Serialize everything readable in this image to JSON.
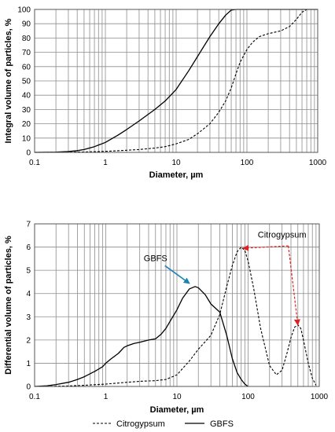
{
  "chart_data": [
    {
      "type": "line",
      "xscale": "log",
      "xlim": [
        0.1,
        1000
      ],
      "ylim": [
        0,
        100
      ],
      "xticks": [
        0.1,
        1,
        10,
        100,
        1000
      ],
      "xtick_labels": [
        "0.1",
        "1",
        "10",
        "100",
        "1000"
      ],
      "yticks": [
        0,
        10,
        20,
        30,
        40,
        50,
        60,
        70,
        80,
        90,
        100
      ],
      "ytick_labels": [
        "0",
        "10",
        "20",
        "30",
        "40",
        "50",
        "60",
        "70",
        "80",
        "90",
        "100"
      ],
      "xlabel": "Diameter, µm",
      "ylabel": "Integral volume of particles, %",
      "grid": true,
      "series": [
        {
          "name": "GBFS",
          "style": "solid",
          "color": "#000000",
          "x": [
            0.1,
            0.15,
            0.2,
            0.3,
            0.4,
            0.5,
            0.7,
            1,
            1.5,
            2,
            3,
            5,
            7,
            10,
            15,
            20,
            30,
            40,
            50,
            60,
            70,
            80,
            100,
            150,
            200,
            500,
            1000
          ],
          "y": [
            0,
            0.1,
            0.2,
            0.6,
            1.2,
            2,
            4,
            7,
            12,
            16,
            22,
            30,
            36,
            44,
            57,
            67,
            81,
            90,
            96,
            99.5,
            100,
            100,
            100,
            100,
            100,
            100,
            100
          ]
        },
        {
          "name": "Citrogypsum",
          "style": "dashed",
          "color": "#000000",
          "x": [
            0.1,
            0.2,
            0.5,
            1,
            2,
            3,
            5,
            7,
            10,
            15,
            20,
            30,
            40,
            50,
            60,
            70,
            80,
            100,
            120,
            150,
            200,
            300,
            400,
            500,
            600,
            700,
            1000
          ],
          "y": [
            0,
            0.1,
            0.3,
            0.7,
            1.5,
            2,
            3,
            4,
            6,
            9,
            13,
            20,
            28,
            36,
            45,
            55,
            63,
            72,
            77,
            81,
            83,
            85,
            88,
            93,
            98,
            100,
            100
          ]
        }
      ]
    },
    {
      "type": "line",
      "xscale": "log",
      "xlim": [
        0.1,
        1000
      ],
      "ylim": [
        0,
        7
      ],
      "xticks": [
        0.1,
        1,
        10,
        100,
        1000
      ],
      "xtick_labels": [
        "0.1",
        "1",
        "10",
        "100",
        "1000"
      ],
      "yticks": [
        0,
        1,
        2,
        3,
        4,
        5,
        6,
        7
      ],
      "ytick_labels": [
        "0",
        "1",
        "2",
        "3",
        "4",
        "5",
        "6",
        "7"
      ],
      "xlabel": "Diameter, µm",
      "ylabel": "Differential volume of particles, %",
      "grid": true,
      "legend": "bottom",
      "series": [
        {
          "name": "GBFS",
          "style": "solid",
          "color": "#000000",
          "x": [
            0.1,
            0.15,
            0.2,
            0.3,
            0.4,
            0.5,
            0.7,
            0.9,
            1,
            1.2,
            1.5,
            1.8,
            2,
            2.5,
            3,
            4,
            5,
            6,
            7,
            8,
            10,
            12,
            15,
            18,
            20,
            25,
            30,
            40,
            50,
            60,
            70,
            80,
            90,
            100
          ],
          "y": [
            0,
            0.03,
            0.08,
            0.18,
            0.3,
            0.42,
            0.65,
            0.85,
            1.0,
            1.2,
            1.42,
            1.68,
            1.75,
            1.85,
            1.9,
            2.0,
            2.05,
            2.25,
            2.5,
            2.8,
            3.3,
            3.8,
            4.2,
            4.3,
            4.25,
            3.95,
            3.55,
            3.2,
            2.2,
            1.2,
            0.6,
            0.3,
            0.1,
            0
          ]
        },
        {
          "name": "Citrogypsum",
          "style": "dashed",
          "color": "#000000",
          "x": [
            0.1,
            0.2,
            0.3,
            0.5,
            1,
            2,
            3,
            5,
            7,
            10,
            15,
            20,
            30,
            40,
            50,
            60,
            70,
            80,
            90,
            100,
            120,
            150,
            200,
            250,
            300,
            350,
            400,
            450,
            500,
            550,
            600,
            700,
            800,
            900
          ],
          "y": [
            0,
            0.01,
            0.02,
            0.05,
            0.1,
            0.18,
            0.22,
            0.25,
            0.3,
            0.5,
            1.1,
            1.6,
            2.2,
            3.1,
            4.3,
            5.2,
            5.8,
            6.0,
            5.85,
            5.4,
            4.2,
            2.5,
            0.9,
            0.5,
            0.7,
            1.4,
            2.1,
            2.55,
            2.65,
            2.5,
            2.0,
            1.0,
            0.35,
            0.05
          ]
        }
      ],
      "annotations": [
        {
          "text": "GBFS",
          "x": 5,
          "y": 5.4,
          "arrow_to": [
            15,
            4.3
          ],
          "arrow_color": "#1a82b5",
          "text_color": "#000000"
        },
        {
          "text": "Citrogypsum",
          "x": 300,
          "y": 6.4,
          "arrow_from": [
            300,
            6.05
          ],
          "arrows_to": [
            [
              85,
              5.95
            ],
            [
              500,
              2.65
            ]
          ],
          "arrow_color": "#e02020",
          "text_color": "#000000"
        }
      ]
    }
  ]
}
